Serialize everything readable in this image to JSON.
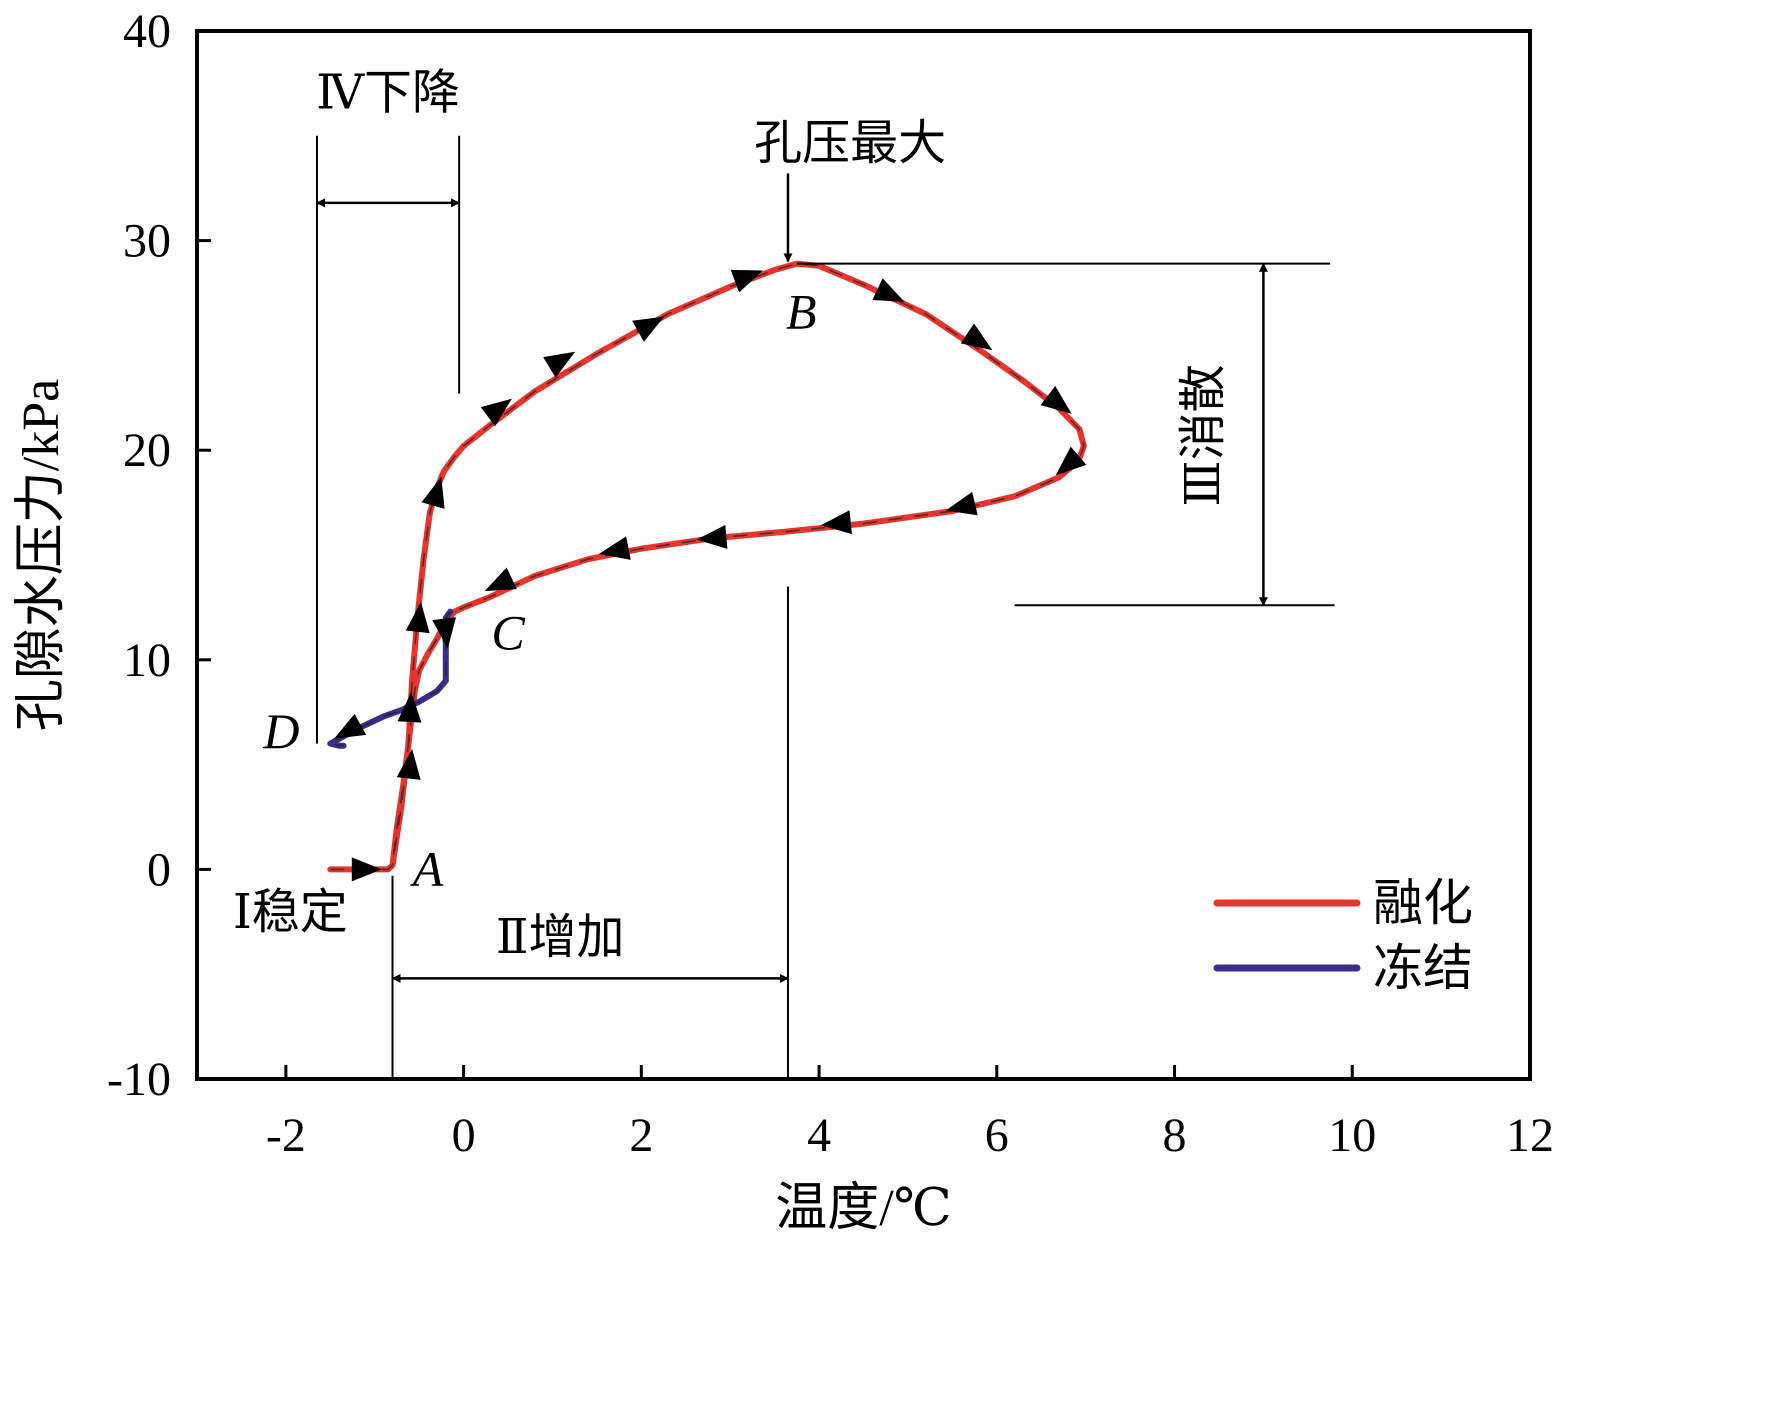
{
  "chart_data": {
    "type": "line",
    "xlabel": "温度/℃",
    "ylabel": "孔隙水压力/kPa",
    "xlim": [
      -3,
      12
    ],
    "ylim": [
      -10,
      40
    ],
    "x_ticks": [
      "-2",
      "0",
      "2",
      "4",
      "6",
      "8",
      "10",
      "12"
    ],
    "y_ticks": [
      "-10",
      "0",
      "10",
      "20",
      "30",
      "40"
    ],
    "grid": false,
    "legend": {
      "position": "bottom-right"
    },
    "series": [
      {
        "name": "融化",
        "color": "#e8342f",
        "x": [
          -1.5,
          -1.0,
          -0.85,
          -0.8,
          -0.7,
          -0.62,
          -0.58,
          -0.52,
          -0.45,
          -0.38,
          -0.3,
          -0.22,
          -0.1,
          0.0,
          0.3,
          0.8,
          1.5,
          2.3,
          3.0,
          3.5,
          3.75,
          4.0,
          4.5,
          5.2,
          5.8,
          6.3,
          6.7,
          6.93,
          6.98,
          6.92,
          6.7,
          6.2,
          5.5,
          4.5,
          3.6,
          2.8,
          2.0,
          1.4,
          0.8,
          0.3,
          0.0,
          -0.1,
          -0.2,
          -0.3,
          -0.4,
          -0.5,
          -0.55,
          -0.58,
          -0.62,
          -0.68,
          -0.75,
          -0.8
        ],
        "y": [
          0,
          0,
          0,
          0.2,
          3.0,
          6.0,
          9.0,
          12.0,
          14.8,
          17.0,
          18.2,
          19.0,
          19.7,
          20.2,
          21.2,
          22.8,
          24.6,
          26.5,
          27.8,
          28.6,
          28.9,
          28.8,
          27.9,
          26.5,
          24.8,
          23.3,
          22.0,
          21.0,
          20.2,
          19.5,
          18.7,
          17.8,
          17.1,
          16.5,
          16.1,
          15.8,
          15.3,
          14.8,
          14.0,
          13.0,
          12.5,
          12.3,
          11.8,
          11.0,
          10.3,
          9.5,
          8.5,
          7.5,
          6.0,
          4.0,
          2.0,
          0.2
        ]
      },
      {
        "name": "冻结",
        "color": "#3a2e8a",
        "x": [
          -0.15,
          -0.2,
          -0.22,
          -0.2,
          -0.2,
          -0.3,
          -0.5,
          -0.7,
          -0.9,
          -1.2,
          -1.5,
          -1.4,
          -1.35
        ],
        "y": [
          12.3,
          12.0,
          11.5,
          10.8,
          9.0,
          8.5,
          8.0,
          7.6,
          7.3,
          6.7,
          6.0,
          5.9,
          5.9
        ]
      }
    ],
    "arrow_marker_x": [
      -1.1,
      -0.6,
      -0.5,
      -0.3,
      0.4,
      1.1,
      2.1,
      3.2,
      4.8,
      5.8,
      6.7,
      6.8,
      5.6,
      4.2,
      2.8,
      1.7,
      0.4,
      -0.2,
      -1.3,
      -0.6
    ],
    "arrow_marker_y": [
      0,
      5,
      12,
      18,
      22,
      24.3,
      26,
      28.3,
      27.4,
      25.2,
      22.2,
      19.3,
      17.3,
      16.5,
      15.8,
      15.2,
      13.6,
      11.3,
      6.6,
      7.7
    ],
    "point_labels": [
      {
        "text": "A",
        "x": -0.4,
        "y": -0.8
      },
      {
        "text": "B",
        "x": 3.8,
        "y": 25.8
      },
      {
        "text": "C",
        "x": 0.5,
        "y": 10.5
      },
      {
        "text": "D",
        "x": -2.05,
        "y": 5.8
      }
    ],
    "annotations": {
      "stable": "Ⅰ稳定",
      "increase": "Ⅱ增加",
      "dissipate": "Ⅲ消散",
      "decrease": "Ⅳ下降",
      "max_pressure": "孔压最大"
    },
    "stage_ranges": {
      "stable": [
        -1.5,
        -0.8
      ],
      "increase": [
        -0.8,
        3.65
      ],
      "dissipate": [
        12.6,
        28.9
      ],
      "decrease": [
        -1.65,
        -0.05
      ]
    }
  }
}
